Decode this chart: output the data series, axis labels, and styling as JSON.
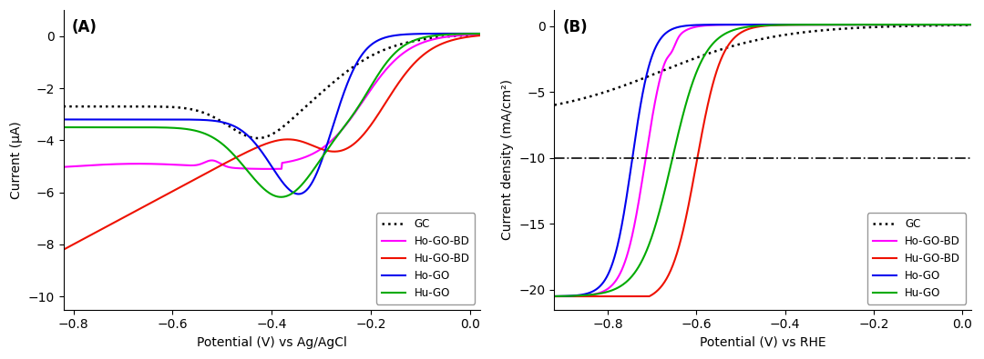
{
  "panel_A": {
    "label": "(A)",
    "xlabel": "Potential (V) vs Ag/AgCl",
    "ylabel": "Current (μA)",
    "xlim": [
      -0.82,
      0.02
    ],
    "ylim": [
      -10.5,
      1.0
    ],
    "yticks": [
      0,
      -2,
      -4,
      -6,
      -8,
      -10
    ],
    "xticks": [
      -0.8,
      -0.6,
      -0.4,
      -0.2,
      0.0
    ],
    "background": "#ffffff",
    "curves": {
      "GC": {
        "color": "#000000",
        "linewidth": 1.8
      },
      "Ho-GO-BD": {
        "color": "#ff00ff",
        "linewidth": 1.5
      },
      "Hu-GO-BD": {
        "color": "#ee1100",
        "linewidth": 1.5
      },
      "Ho-GO": {
        "color": "#0000ee",
        "linewidth": 1.5
      },
      "Hu-GO": {
        "color": "#00aa00",
        "linewidth": 1.5
      }
    }
  },
  "panel_B": {
    "label": "(B)",
    "xlabel": "Potential (V) vs RHE",
    "ylabel": "Current density (mA/cm²)",
    "xlim": [
      -0.92,
      0.02
    ],
    "ylim": [
      -21.5,
      1.2
    ],
    "yticks": [
      0,
      -5,
      -10,
      -15,
      -20
    ],
    "xticks": [
      -0.8,
      -0.6,
      -0.4,
      -0.2,
      0.0
    ],
    "ref_line_y": -10,
    "background": "#ffffff",
    "curves": {
      "GC": {
        "color": "#000000",
        "linewidth": 1.8
      },
      "Ho-GO-BD": {
        "color": "#ff00ff",
        "linewidth": 1.5
      },
      "Hu-GO-BD": {
        "color": "#ee1100",
        "linewidth": 1.5
      },
      "Ho-GO": {
        "color": "#0000ee",
        "linewidth": 1.5
      },
      "Hu-GO": {
        "color": "#00aa00",
        "linewidth": 1.5
      }
    }
  }
}
